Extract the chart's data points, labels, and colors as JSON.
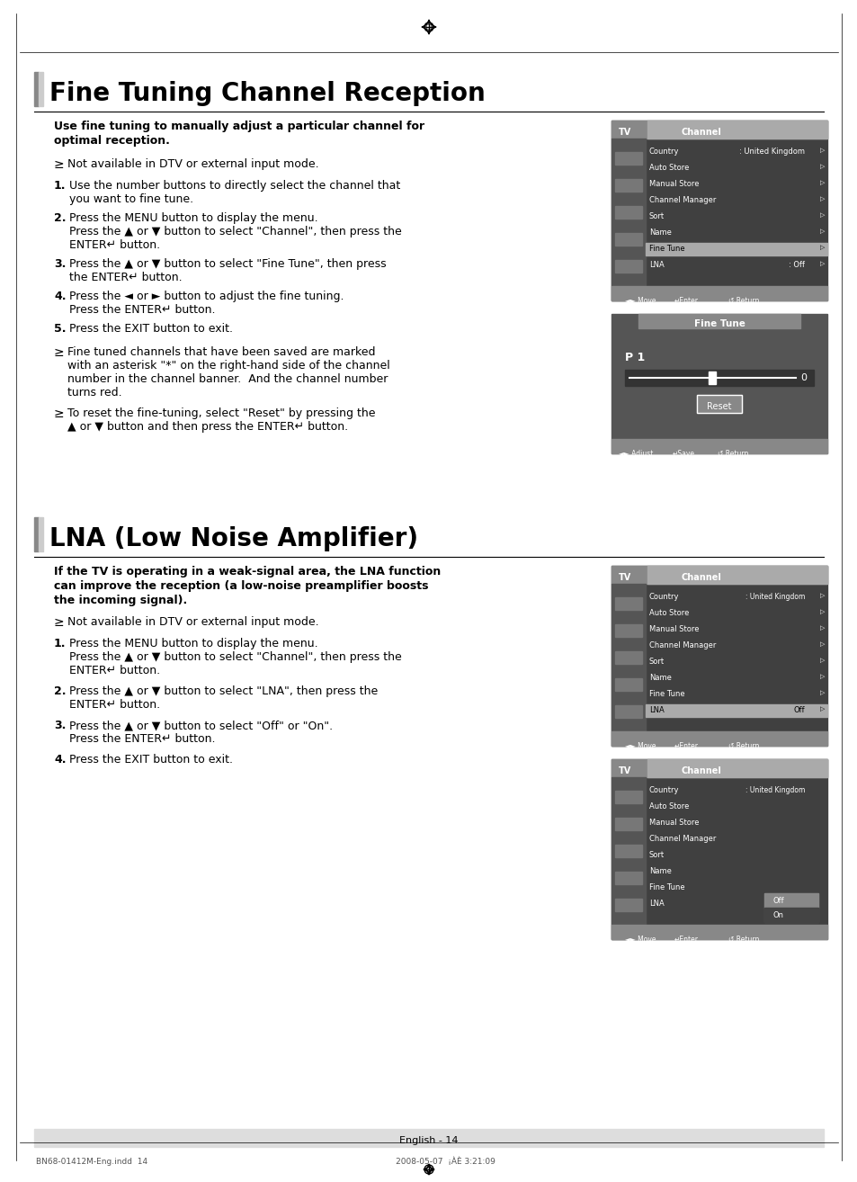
{
  "page_bg": "#ffffff",
  "compass_color": "#000000",
  "header_line_color": "#000000",
  "footer_line_color": "#000000",
  "footer_text": "English - 14",
  "footer_bottom": "BN68-01412M-Eng.indd  14                                                                                                2008-05-07  ¡ÀÈ 3:21:09",
  "section1_title": "Fine Tuning Channel Reception",
  "section1_intro": "Use fine tuning to manually adjust a particular channel for\noptimal reception.",
  "section1_note": "Not available in DTV or external input mode.",
  "section1_steps": [
    "Use the number buttons to directly select the channel that\nyou want to fine tune.",
    "Press the MENU button to display the menu.\nPress the ▲ or ▼ button to select \"Channel\", then press the\nENTER↵ button.",
    "Press the ▲ or ▼ button to select \"Fine Tune\", then press\nthe ENTER↵ button.",
    "Press the ◄ or ► button to adjust the fine tuning.\nPress the ENTER↵ button.",
    "Press the EXIT button to exit."
  ],
  "section1_notes2": [
    "Fine tuned channels that have been saved are marked\nwith an asterisk \"*\" on the right-hand side of the channel\nnumber in the channel banner.  And the channel number\nturns red.",
    "To reset the fine-tuning, select \"Reset\" by pressing the\n▲ or ▼ button and then press the ENTER↵ button."
  ],
  "section2_title": "LNA (Low Noise Amplifier)",
  "section2_intro": "If the TV is operating in a weak-signal area, the LNA function\ncan improve the reception (a low-noise preamplifier boosts\nthe incoming signal).",
  "section2_note": "Not available in DTV or external input mode.",
  "section2_steps": [
    "Press the MENU button to display the menu.\nPress the ▲ or ▼ button to select \"Channel\", then press the\nENTER↵ button.",
    "Press the ▲ or ▼ button to select \"LNA\", then press the\nENTER↵ button.",
    "Press the ▲ or ▼ button to select \"Off\" or \"On\".\nPress the ENTER↵ button.",
    "Press the EXIT button to exit."
  ],
  "tv_screen1": {
    "title_left": "TV",
    "title_right": "Channel",
    "menu_items": [
      "Country",
      "Auto Store",
      "Manual Store",
      "Channel Manager",
      "Sort",
      "Name",
      "Fine Tune",
      "LNA"
    ],
    "menu_values": [
      ": United Kingdom",
      "",
      "",
      "",
      "",
      "",
      "",
      ": Off"
    ],
    "selected_item": 6,
    "icons": 5
  },
  "fine_tune_screen": {
    "title": "Fine Tune",
    "channel": "P 1",
    "value": "0",
    "footer": "◄► Adjust    ↵Save    ↺ Return"
  },
  "tv_screen2": {
    "title_left": "TV",
    "title_right": "Channel",
    "menu_items": [
      "Country",
      "Auto Store",
      "Manual Store",
      "Channel Manager",
      "Sort",
      "Name",
      "Fine Tune",
      "LNA"
    ],
    "menu_values": [
      ": United Kingdom",
      "",
      "",
      "",
      "",
      "",
      "",
      ""
    ],
    "selected_item": 7,
    "lna_selected": true
  },
  "tv_screen3": {
    "title_left": "TV",
    "title_right": "Channel",
    "menu_items": [
      "Country",
      "Auto Store",
      "Manual Store",
      "Channel Manager",
      "Sort",
      "Name",
      "Fine Tune",
      "LNA"
    ],
    "menu_values": [
      ": United Kingdom",
      "",
      "",
      "",
      "",
      "",
      "",
      ""
    ],
    "show_dropdown": true,
    "dropdown_items": [
      "Off",
      "On"
    ]
  }
}
